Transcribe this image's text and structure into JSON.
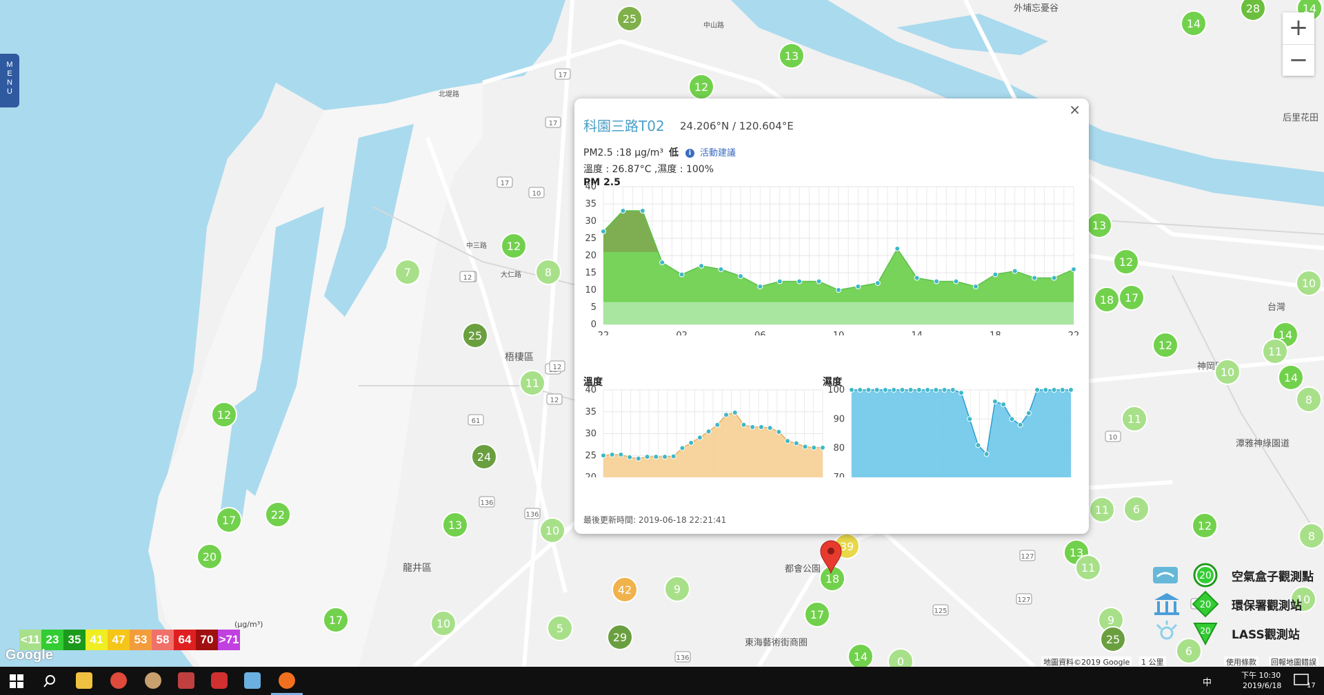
{
  "menu": {
    "label": "MENU"
  },
  "zoom": {
    "in_label": "+",
    "out_label": "−"
  },
  "map_labels": [
    {
      "text": "外埔忘憂谷",
      "kind": "place"
    },
    {
      "text": "梧棲區",
      "kind": "district"
    },
    {
      "text": "龍井區",
      "kind": "district"
    },
    {
      "text": "神岡區",
      "kind": "district"
    },
    {
      "text": "潭雅神綠園道",
      "kind": "place"
    },
    {
      "text": "都會公園",
      "kind": "place"
    },
    {
      "text": "東海藝術街商圈",
      "kind": "place"
    },
    {
      "text": "后里花田",
      "kind": "place"
    },
    {
      "text": "台灣",
      "kind": "place"
    },
    {
      "text": "北堤路",
      "kind": "road"
    },
    {
      "text": "中山路",
      "kind": "road"
    },
    {
      "text": "大仁路",
      "kind": "road"
    },
    {
      "text": "中三路",
      "kind": "road"
    }
  ],
  "road_shields": [
    "17",
    "17",
    "17",
    "17",
    "10",
    "12",
    "12",
    "12",
    "12",
    "61",
    "10",
    "136",
    "136",
    "136",
    "125",
    "127",
    "127",
    "12"
  ],
  "sensors": [
    {
      "value": "25",
      "color": "#7fb04a"
    },
    {
      "value": "13",
      "color": "#72d14c"
    },
    {
      "value": "12",
      "color": "#72d14c"
    },
    {
      "value": "28",
      "color": "#6cbf3e"
    },
    {
      "value": "14",
      "color": "#72d14c"
    },
    {
      "value": "12",
      "color": "#72d14c"
    },
    {
      "value": "7",
      "color": "#a8e08a"
    },
    {
      "value": "8",
      "color": "#a8e08a"
    },
    {
      "value": "25",
      "color": "#6a9f3f"
    },
    {
      "value": "11",
      "color": "#a8e08a"
    },
    {
      "value": "12",
      "color": "#72d14c"
    },
    {
      "value": "24",
      "color": "#6a9f3f"
    },
    {
      "value": "17",
      "color": "#72d14c"
    },
    {
      "value": "22",
      "color": "#72d14c"
    },
    {
      "value": "20",
      "color": "#72d14c"
    },
    {
      "value": "13",
      "color": "#72d14c"
    },
    {
      "value": "10",
      "color": "#a8e08a"
    },
    {
      "value": "17",
      "color": "#72d14c"
    },
    {
      "value": "10",
      "color": "#a8e08a"
    },
    {
      "value": "5",
      "color": "#a8e08a"
    },
    {
      "value": "42",
      "color": "#f0b24a"
    },
    {
      "value": "9",
      "color": "#a8e08a"
    },
    {
      "value": "29",
      "color": "#6a9f3f"
    },
    {
      "value": "17",
      "color": "#72d14c"
    },
    {
      "value": "18",
      "color": "#72d14c"
    },
    {
      "value": "39",
      "color": "#e8d84a"
    },
    {
      "value": "14",
      "color": "#72d14c"
    },
    {
      "value": "0",
      "color": "#a8e08a"
    },
    {
      "value": "13",
      "color": "#72d14c"
    },
    {
      "value": "12",
      "color": "#72d14c"
    },
    {
      "value": "18",
      "color": "#72d14c"
    },
    {
      "value": "17",
      "color": "#72d14c"
    },
    {
      "value": "12",
      "color": "#72d14c"
    },
    {
      "value": "14",
      "color": "#72d14c"
    },
    {
      "value": "11",
      "color": "#a8e08a"
    },
    {
      "value": "10",
      "color": "#a8e08a"
    },
    {
      "value": "10",
      "color": "#a8e08a"
    },
    {
      "value": "8",
      "color": "#a8e08a"
    },
    {
      "value": "11",
      "color": "#a8e08a"
    },
    {
      "value": "11",
      "color": "#a8e08a"
    },
    {
      "value": "6",
      "color": "#a8e08a"
    },
    {
      "value": "12",
      "color": "#72d14c"
    },
    {
      "value": "13",
      "color": "#72d14c"
    },
    {
      "value": "11",
      "color": "#a8e08a"
    },
    {
      "value": "9",
      "color": "#a8e08a"
    },
    {
      "value": "25",
      "color": "#6a9f3f"
    },
    {
      "value": "6",
      "color": "#a8e08a"
    },
    {
      "value": "8",
      "color": "#a8e08a"
    },
    {
      "value": "10",
      "color": "#a8e08a"
    },
    {
      "value": "14",
      "color": "#72d14c"
    },
    {
      "value": "14",
      "color": "#72d14c"
    }
  ],
  "popup": {
    "title": "科園三路T02",
    "coords": "24.206°N / 120.604°E",
    "pm_text": "PM2.5 :18 μg/m³",
    "pm_level": "低",
    "advice_label": "活動建議",
    "env_text": "溫度 : 26.87°C ,濕度 : 100%",
    "updated": "最後更新時間: 2019-06-18 22:21:41",
    "close_label": "×"
  },
  "chart_data": [
    {
      "type": "area",
      "title": "PM 2.5",
      "x_tick_labels": [
        "22",
        "02",
        "06",
        "10",
        "14",
        "18",
        "22"
      ],
      "ylim": [
        0,
        40
      ],
      "y_ticks": [
        0,
        5,
        10,
        15,
        20,
        25,
        30,
        35,
        40
      ],
      "grid": true,
      "series": [
        {
          "values": [
            27,
            33,
            33,
            18,
            14.5,
            17,
            16,
            14,
            11,
            12.5,
            12.5,
            12.5,
            10,
            11,
            12,
            22,
            13.5,
            12.5,
            12.5,
            11,
            14.5,
            15.5,
            13.5,
            13.5,
            16
          ]
        }
      ],
      "band_colors": [
        "#a9e6a0",
        "#77d35a",
        "#7fae52"
      ]
    },
    {
      "type": "area",
      "title": "溫度",
      "ylim": [
        20,
        40
      ],
      "y_ticks": [
        20,
        25,
        30,
        35,
        40
      ],
      "grid": true,
      "series": [
        {
          "values": [
            25,
            25.2,
            25.2,
            24.6,
            24.3,
            24.7,
            24.7,
            24.7,
            24.8,
            26.7,
            27.9,
            29.1,
            30.5,
            32,
            34.3,
            34.8,
            32,
            31.5,
            31.5,
            31.3,
            30.4,
            28.3,
            27.8,
            27,
            26.8,
            26.8
          ]
        }
      ],
      "fill_color": "#f6cf93"
    },
    {
      "type": "area",
      "title": "濕度",
      "ylim": [
        70,
        100
      ],
      "y_ticks": [
        70,
        80,
        90,
        100
      ],
      "grid": true,
      "series": [
        {
          "values": [
            100,
            100,
            100,
            100,
            100,
            100,
            100,
            100,
            100,
            100,
            100,
            100,
            100,
            99,
            90,
            81,
            78,
            96,
            95,
            90,
            88,
            92,
            100,
            100,
            100,
            100,
            100
          ]
        }
      ],
      "fill_color": "#6ec8ea"
    }
  ],
  "legend_bar": {
    "unit": "(μg/m³)",
    "items": [
      {
        "label": "<11",
        "color": "#a8e08a"
      },
      {
        "label": "23",
        "color": "#33cc33"
      },
      {
        "label": "35",
        "color": "#1c9a1c"
      },
      {
        "label": "41",
        "color": "#eeee22"
      },
      {
        "label": "47",
        "color": "#f5c518"
      },
      {
        "label": "53",
        "color": "#f39c3c"
      },
      {
        "label": "58",
        "color": "#f0706a"
      },
      {
        "label": "64",
        "color": "#e02020"
      },
      {
        "label": "70",
        "color": "#a01010"
      },
      {
        "label": ">71",
        "color": "#c040e0"
      }
    ]
  },
  "station_legend": [
    {
      "label": "空氣盒子觀測點",
      "badge": "20",
      "icon": "airbox-icon"
    },
    {
      "label": "環保署觀測站",
      "badge": "20",
      "icon": "epa-station-icon"
    },
    {
      "label": "LASS觀測站",
      "badge": "20",
      "icon": "lass-station-icon"
    }
  ],
  "attribution": {
    "google": "Google",
    "map_data": "地圖資料©2019 Google",
    "scale": "1 公里",
    "terms": "使用條款",
    "report": "回報地圖錯誤"
  },
  "taskbar": {
    "time": "下午 10:30",
    "date": "2019/6/18",
    "ime": "中",
    "notif_count": "17"
  }
}
